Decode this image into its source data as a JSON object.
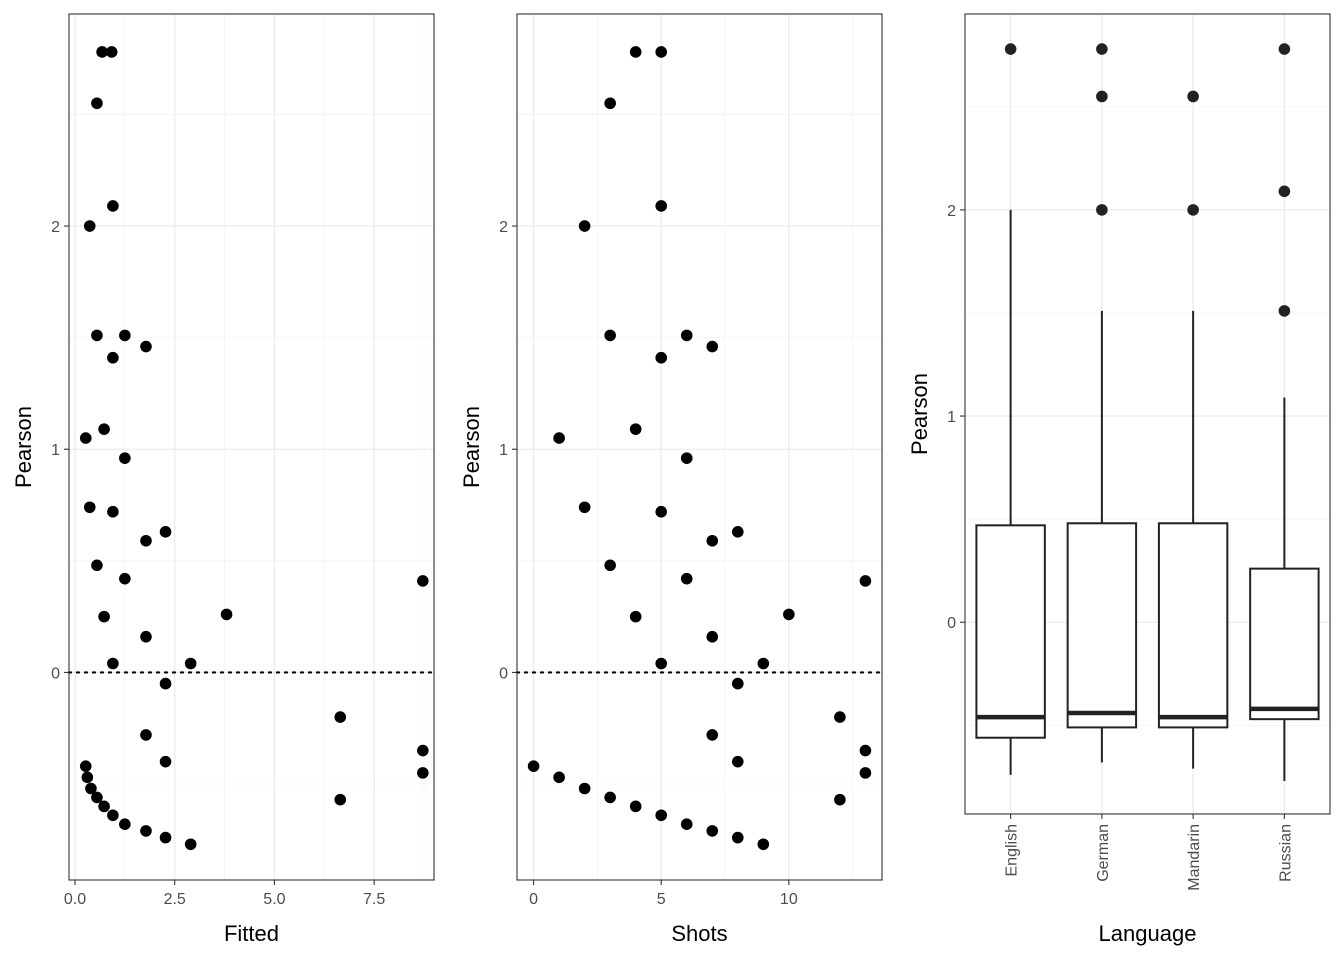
{
  "chart_data": [
    {
      "type": "scatter",
      "xlabel": "Fitted",
      "ylabel": "Pearson",
      "xlim": [
        -0.15,
        9.0
      ],
      "ylim": [
        -0.93,
        2.95
      ],
      "xticks": [
        0.0,
        2.5,
        5.0,
        7.5
      ],
      "xtick_labels": [
        "0.0",
        "2.5",
        "5.0",
        "7.5"
      ],
      "yticks": [
        0,
        1,
        2
      ],
      "ytick_labels": [
        "0",
        "1",
        "2"
      ],
      "hline": 0,
      "points": [
        {
          "x": 0.68,
          "y": 2.78
        },
        {
          "x": 0.92,
          "y": 2.78
        },
        {
          "x": 0.55,
          "y": 2.55
        },
        {
          "x": 0.95,
          "y": 2.09
        },
        {
          "x": 0.37,
          "y": 2.0
        },
        {
          "x": 0.55,
          "y": 1.51
        },
        {
          "x": 1.25,
          "y": 1.51
        },
        {
          "x": 0.95,
          "y": 1.41
        },
        {
          "x": 1.78,
          "y": 1.46
        },
        {
          "x": 0.27,
          "y": 1.05
        },
        {
          "x": 0.73,
          "y": 1.09
        },
        {
          "x": 1.25,
          "y": 0.96
        },
        {
          "x": 0.37,
          "y": 0.74
        },
        {
          "x": 0.95,
          "y": 0.72
        },
        {
          "x": 1.78,
          "y": 0.59
        },
        {
          "x": 2.27,
          "y": 0.63
        },
        {
          "x": 0.55,
          "y": 0.48
        },
        {
          "x": 1.25,
          "y": 0.42
        },
        {
          "x": 0.73,
          "y": 0.25
        },
        {
          "x": 3.8,
          "y": 0.26
        },
        {
          "x": 1.78,
          "y": 0.16
        },
        {
          "x": 0.95,
          "y": 0.04
        },
        {
          "x": 2.9,
          "y": 0.04
        },
        {
          "x": 8.72,
          "y": 0.41
        },
        {
          "x": 2.27,
          "y": -0.05
        },
        {
          "x": 6.65,
          "y": -0.2
        },
        {
          "x": 1.78,
          "y": -0.28
        },
        {
          "x": 8.72,
          "y": -0.35
        },
        {
          "x": 2.27,
          "y": -0.4
        },
        {
          "x": 8.72,
          "y": -0.45
        },
        {
          "x": 0.27,
          "y": -0.42
        },
        {
          "x": 0.31,
          "y": -0.47
        },
        {
          "x": 0.4,
          "y": -0.52
        },
        {
          "x": 0.55,
          "y": -0.56
        },
        {
          "x": 0.73,
          "y": -0.6
        },
        {
          "x": 0.95,
          "y": -0.64
        },
        {
          "x": 1.25,
          "y": -0.68
        },
        {
          "x": 1.78,
          "y": -0.71
        },
        {
          "x": 2.27,
          "y": -0.74
        },
        {
          "x": 2.9,
          "y": -0.77
        },
        {
          "x": 6.65,
          "y": -0.57
        }
      ]
    },
    {
      "type": "scatter",
      "xlabel": "Shots",
      "ylabel": "Pearson",
      "xlim": [
        -0.65,
        13.65
      ],
      "ylim": [
        -0.93,
        2.95
      ],
      "xticks": [
        0,
        5,
        10
      ],
      "xtick_labels": [
        "0",
        "5",
        "10"
      ],
      "yticks": [
        0,
        1,
        2
      ],
      "ytick_labels": [
        "0",
        "1",
        "2"
      ],
      "hline": 0,
      "points": [
        {
          "x": 4,
          "y": 2.78
        },
        {
          "x": 5,
          "y": 2.78
        },
        {
          "x": 3,
          "y": 2.55
        },
        {
          "x": 5,
          "y": 2.09
        },
        {
          "x": 2,
          "y": 2.0
        },
        {
          "x": 3,
          "y": 1.51
        },
        {
          "x": 6,
          "y": 1.51
        },
        {
          "x": 5,
          "y": 1.41
        },
        {
          "x": 7,
          "y": 1.46
        },
        {
          "x": 1,
          "y": 1.05
        },
        {
          "x": 4,
          "y": 1.09
        },
        {
          "x": 6,
          "y": 0.96
        },
        {
          "x": 2,
          "y": 0.74
        },
        {
          "x": 5,
          "y": 0.72
        },
        {
          "x": 7,
          "y": 0.59
        },
        {
          "x": 8,
          "y": 0.63
        },
        {
          "x": 3,
          "y": 0.48
        },
        {
          "x": 6,
          "y": 0.42
        },
        {
          "x": 4,
          "y": 0.25
        },
        {
          "x": 10,
          "y": 0.26
        },
        {
          "x": 7,
          "y": 0.16
        },
        {
          "x": 5,
          "y": 0.04
        },
        {
          "x": 9,
          "y": 0.04
        },
        {
          "x": 13,
          "y": 0.41
        },
        {
          "x": 8,
          "y": -0.05
        },
        {
          "x": 12,
          "y": -0.2
        },
        {
          "x": 7,
          "y": -0.28
        },
        {
          "x": 13,
          "y": -0.35
        },
        {
          "x": 8,
          "y": -0.4
        },
        {
          "x": 13,
          "y": -0.45
        },
        {
          "x": 0,
          "y": -0.42
        },
        {
          "x": 1,
          "y": -0.47
        },
        {
          "x": 2,
          "y": -0.52
        },
        {
          "x": 3,
          "y": -0.56
        },
        {
          "x": 4,
          "y": -0.6
        },
        {
          "x": 5,
          "y": -0.64
        },
        {
          "x": 6,
          "y": -0.68
        },
        {
          "x": 7,
          "y": -0.71
        },
        {
          "x": 8,
          "y": -0.74
        },
        {
          "x": 9,
          "y": -0.77
        },
        {
          "x": 12,
          "y": -0.57
        }
      ]
    },
    {
      "type": "box",
      "xlabel": "Language",
      "ylabel": "Pearson",
      "ylim": [
        -0.93,
        2.95
      ],
      "yticks": [
        0,
        1,
        2
      ],
      "ytick_labels": [
        "0",
        "1",
        "2"
      ],
      "categories": [
        "English",
        "German",
        "Mandarin",
        "Russian"
      ],
      "boxes": [
        {
          "category": "English",
          "lower_whisker": -0.74,
          "q1": -0.56,
          "median": -0.46,
          "q3": 0.47,
          "upper_whisker": 2.0,
          "outliers": [
            2.78
          ]
        },
        {
          "category": "German",
          "lower_whisker": -0.68,
          "q1": -0.51,
          "median": -0.44,
          "q3": 0.48,
          "upper_whisker": 1.51,
          "outliers": [
            2.78,
            2.55,
            2.0
          ]
        },
        {
          "category": "Mandarin",
          "lower_whisker": -0.71,
          "q1": -0.51,
          "median": -0.46,
          "q3": 0.48,
          "upper_whisker": 1.51,
          "outliers": [
            2.55,
            2.0
          ]
        },
        {
          "category": "Russian",
          "lower_whisker": -0.77,
          "q1": -0.47,
          "median": -0.42,
          "q3": 0.26,
          "upper_whisker": 1.09,
          "outliers": [
            2.78,
            2.09,
            1.51
          ]
        }
      ]
    }
  ]
}
